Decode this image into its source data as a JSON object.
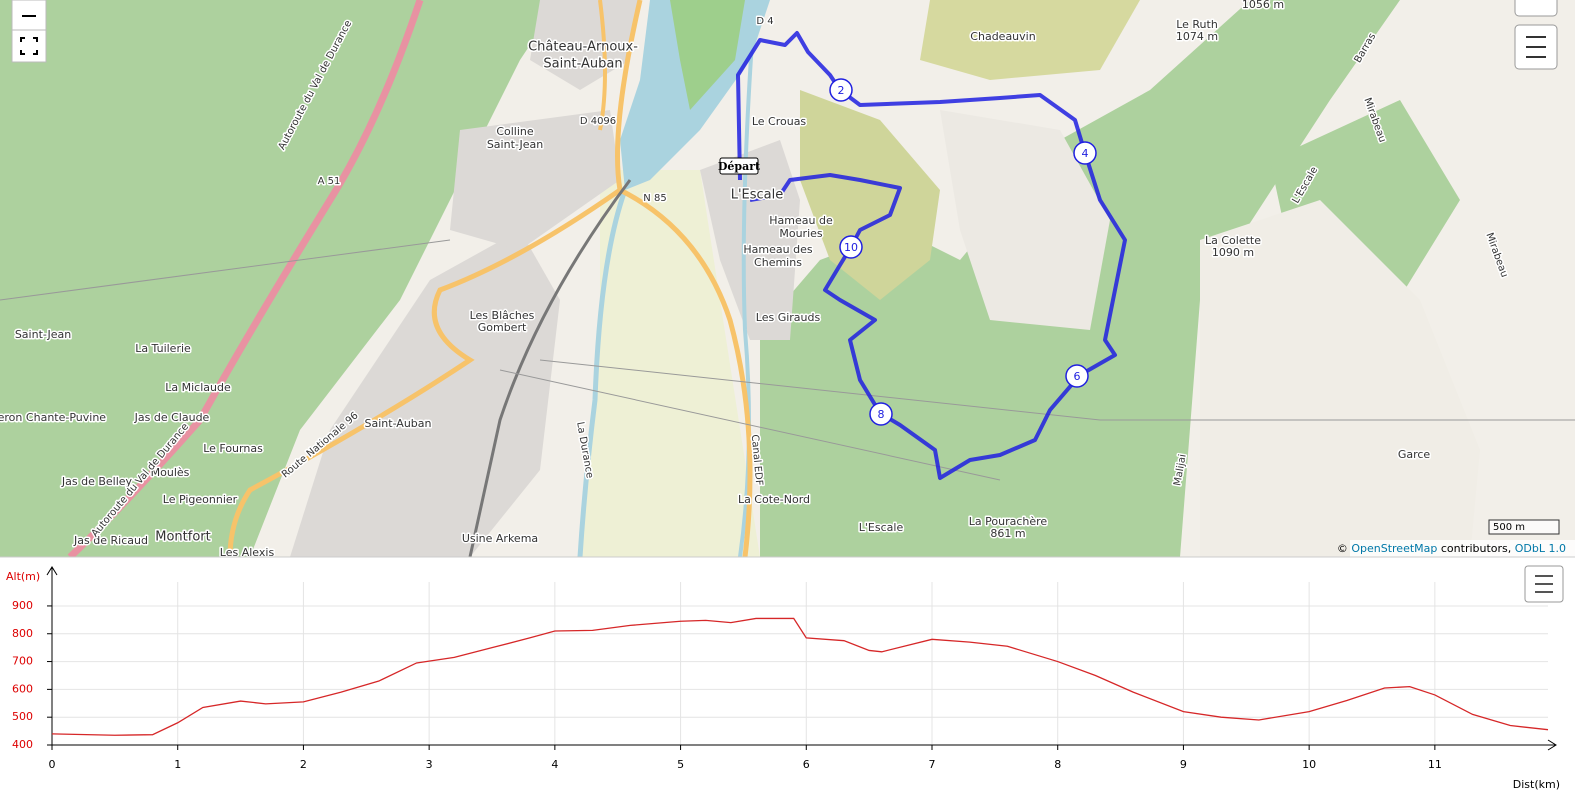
{
  "map": {
    "labels": [
      "Château-Arnoux-",
      "Saint-Auban",
      "D 4",
      "Chadeauvin",
      "Le Ruth",
      "1074 m",
      "1056 m",
      "D 4096",
      "Colline",
      "Saint-Jean",
      "Le Crouas",
      "A 51",
      "N 85",
      "L'Escale",
      "Hameau de",
      "Mouries",
      "Hameau des",
      "Chemins",
      "La Colette",
      "1090 m",
      "Les Blâches",
      "Gombert",
      "Les Girauds",
      "Saint-Jean",
      "La Tuilerie",
      "La Miclaude",
      "Jas de Claude",
      "Chante-Puvine",
      "Saint-Auban",
      "Le Fournas",
      "Garce",
      "Moulès",
      "Jas de Belley",
      "Le Pigeonnier",
      "La Cote-Nord",
      "L'Escale",
      "La Pourachère",
      "861 m",
      "Jas de Ricaud",
      "Montfort",
      "Usine Arkema",
      "Les Alexis",
      "Autoroute du Val de Durance",
      "Autoroute du Val de Durance",
      "Route Nationale 96",
      "La Durance",
      "Canal EDF",
      "L'Escale",
      "Mirabeau",
      "Barras",
      "Malijai",
      "Mirabeau",
      "eron"
    ],
    "start": "Départ",
    "markers": [
      "2",
      "4",
      "6",
      "8",
      "10"
    ],
    "scale": "500 m",
    "attribution": [
      "©",
      "OpenStreetMap",
      "contributors,",
      "ODbL 1.0"
    ]
  },
  "chart_data": {
    "type": "line",
    "y_label": "Alt(m)",
    "x_label": "Dist(km)",
    "x": [
      0,
      0.5,
      0.8,
      1.0,
      1.2,
      1.5,
      1.7,
      2.0,
      2.3,
      2.6,
      2.9,
      3.2,
      3.5,
      3.8,
      4.0,
      4.3,
      4.6,
      5.0,
      5.2,
      5.4,
      5.6,
      5.9,
      6.0,
      6.3,
      6.5,
      6.6,
      7.0,
      7.3,
      7.6,
      8.0,
      8.3,
      8.6,
      9.0,
      9.3,
      9.6,
      10.0,
      10.3,
      10.6,
      10.8,
      11.0,
      11.3,
      11.6,
      11.9
    ],
    "values": [
      440,
      435,
      437,
      480,
      535,
      558,
      548,
      555,
      590,
      630,
      695,
      715,
      750,
      785,
      810,
      812,
      830,
      845,
      848,
      840,
      855,
      855,
      785,
      775,
      740,
      735,
      780,
      770,
      755,
      700,
      650,
      590,
      520,
      500,
      490,
      520,
      560,
      605,
      610,
      580,
      510,
      470,
      455
    ],
    "color": "#d62728",
    "xlim": [
      0,
      11.9
    ],
    "ylim": [
      400,
      1040
    ],
    "xticks": [
      0,
      1,
      2,
      3,
      4,
      5,
      6,
      7,
      8,
      9,
      10,
      11
    ],
    "yticks": [
      400,
      500,
      600,
      700,
      800,
      900
    ],
    "grid": true
  }
}
